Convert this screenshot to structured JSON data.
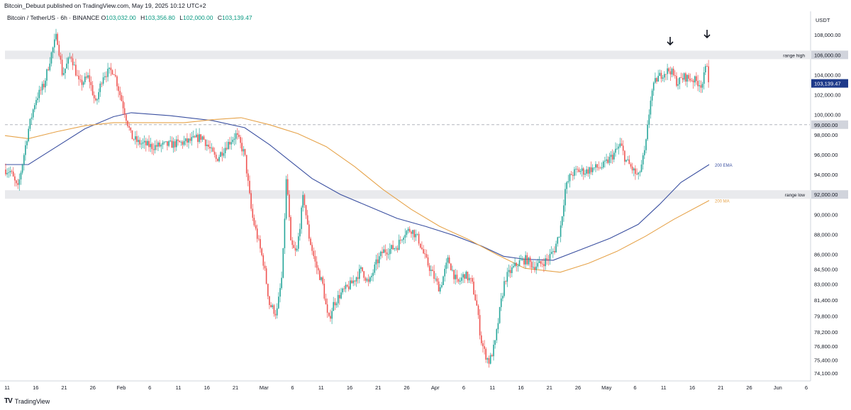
{
  "header": {
    "publish_text": "Bitcoin_Debuut published on TradingView.com, May 19, 2025 10:12 UTC+2",
    "symbol": "Bitcoin / TetherUS · 6h · BINANCE",
    "open_label": "O",
    "open": "103,032.00",
    "high_label": "H",
    "high": "103,356.80",
    "low_label": "L",
    "low": "102,000.00",
    "close_label": "C",
    "close": "103,139.47"
  },
  "footer": {
    "brand": "TradingView"
  },
  "colors": {
    "up": "#26a69a",
    "down": "#ef5350",
    "ema": "#3a4fa0",
    "ma": "#e6a34a",
    "zone": "#e9eaed",
    "last_price_bg": "#1e3a8a",
    "grid": "#f0f3fa"
  },
  "chart_data": {
    "type": "candlestick",
    "currency_label": "USDT",
    "y_ticks": [
      "108,000.00",
      "104,000.00",
      "102,000.00",
      "100,000.00",
      "98,000.00",
      "96,000.00",
      "94,000.00",
      "90,000.00",
      "88,000.00",
      "86,000.00",
      "84,500.00",
      "83,000.00",
      "81,400.00",
      "79,800.00",
      "78,200.00",
      "76,800.00",
      "75,400.00",
      "74,100.00"
    ],
    "x_ticks": [
      "11",
      "16",
      "21",
      "26",
      "Feb",
      "6",
      "11",
      "16",
      "21",
      "Mar",
      "6",
      "11",
      "16",
      "21",
      "26",
      "Apr",
      "6",
      "11",
      "16",
      "21",
      "26",
      "May",
      "6",
      "11",
      "16",
      "21",
      "26",
      "Jun",
      "6"
    ],
    "y_labels": [
      {
        "text": "106,000.00",
        "value": 106000,
        "label": "range high"
      },
      {
        "text": "99,000.00",
        "value": 99000
      },
      {
        "text": "92,000.00",
        "value": 92000,
        "label": "range low"
      }
    ],
    "last_price": {
      "text": "103,139.47",
      "value": 103139.47
    },
    "zones": [
      {
        "name": "range high",
        "value": 106000
      },
      {
        "name": "range low",
        "value": 92000
      }
    ],
    "dashed_level": 99000,
    "line_labels": [
      {
        "text": "200 EMA"
      },
      {
        "text": "200 MA"
      }
    ],
    "series": [
      {
        "name": "200 EMA",
        "points": [
          [
            7,
            95000
          ],
          [
            40,
            95000
          ],
          [
            80,
            96800
          ],
          [
            120,
            98600
          ],
          [
            160,
            99800
          ],
          [
            185,
            100200
          ],
          [
            240,
            99900
          ],
          [
            300,
            99400
          ],
          [
            345,
            98700
          ],
          [
            380,
            97000
          ],
          [
            410,
            95300
          ],
          [
            440,
            93600
          ],
          [
            480,
            92000
          ],
          [
            520,
            90800
          ],
          [
            560,
            89600
          ],
          [
            600,
            88800
          ],
          [
            640,
            87900
          ],
          [
            680,
            86800
          ],
          [
            710,
            85800
          ],
          [
            740,
            85500
          ],
          [
            780,
            85400
          ],
          [
            820,
            86500
          ],
          [
            860,
            87600
          ],
          [
            900,
            89000
          ],
          [
            930,
            91000
          ],
          [
            960,
            93200
          ],
          [
            1000,
            95000
          ]
        ]
      },
      {
        "name": "200 MA",
        "points": [
          [
            7,
            97900
          ],
          [
            40,
            97600
          ],
          [
            80,
            98300
          ],
          [
            120,
            98900
          ],
          [
            160,
            99200
          ],
          [
            200,
            99200
          ],
          [
            260,
            99200
          ],
          [
            300,
            99500
          ],
          [
            340,
            99700
          ],
          [
            380,
            99000
          ],
          [
            420,
            98100
          ],
          [
            460,
            96800
          ],
          [
            500,
            94800
          ],
          [
            540,
            92500
          ],
          [
            580,
            90500
          ],
          [
            620,
            88800
          ],
          [
            660,
            87500
          ],
          [
            700,
            86000
          ],
          [
            740,
            84600
          ],
          [
            790,
            84200
          ],
          [
            830,
            85100
          ],
          [
            870,
            86300
          ],
          [
            910,
            87800
          ],
          [
            950,
            89500
          ],
          [
            1000,
            91400
          ]
        ]
      }
    ],
    "guide_path": [
      [
        7,
        94500
      ],
      [
        15,
        94300
      ],
      [
        25,
        92500
      ],
      [
        40,
        98500
      ],
      [
        50,
        101500
      ],
      [
        62,
        103000
      ],
      [
        72,
        106000
      ],
      [
        80,
        108000
      ],
      [
        88,
        104000
      ],
      [
        100,
        106000
      ],
      [
        112,
        103000
      ],
      [
        125,
        103800
      ],
      [
        135,
        101000
      ],
      [
        145,
        104000
      ],
      [
        160,
        104500
      ],
      [
        175,
        100500
      ],
      [
        185,
        97800
      ],
      [
        195,
        97200
      ],
      [
        215,
        96800
      ],
      [
        240,
        97000
      ],
      [
        265,
        97300
      ],
      [
        285,
        97800
      ],
      [
        305,
        95500
      ],
      [
        320,
        97000
      ],
      [
        333,
        98000
      ],
      [
        345,
        96000
      ],
      [
        355,
        90000
      ],
      [
        362,
        88000
      ],
      [
        372,
        85000
      ],
      [
        380,
        81000
      ],
      [
        390,
        80000
      ],
      [
        398,
        84000
      ],
      [
        404,
        94000
      ],
      [
        410,
        87000
      ],
      [
        418,
        86000
      ],
      [
        428,
        92000
      ],
      [
        435,
        88000
      ],
      [
        445,
        85000
      ],
      [
        455,
        83000
      ],
      [
        463,
        79200
      ],
      [
        470,
        81000
      ],
      [
        480,
        82000
      ],
      [
        495,
        83000
      ],
      [
        510,
        84500
      ],
      [
        520,
        83000
      ],
      [
        530,
        85000
      ],
      [
        540,
        86300
      ],
      [
        550,
        86500
      ],
      [
        560,
        86800
      ],
      [
        570,
        88200
      ],
      [
        580,
        88500
      ],
      [
        590,
        87500
      ],
      [
        600,
        85500
      ],
      [
        610,
        84000
      ],
      [
        620,
        82500
      ],
      [
        632,
        85500
      ],
      [
        645,
        83000
      ],
      [
        655,
        84000
      ],
      [
        665,
        83200
      ],
      [
        672,
        81000
      ],
      [
        678,
        77500
      ],
      [
        684,
        76000
      ],
      [
        690,
        75200
      ],
      [
        698,
        77000
      ],
      [
        705,
        80500
      ],
      [
        712,
        83500
      ],
      [
        722,
        84500
      ],
      [
        732,
        85200
      ],
      [
        742,
        85500
      ],
      [
        752,
        84800
      ],
      [
        762,
        85000
      ],
      [
        772,
        85500
      ],
      [
        782,
        86500
      ],
      [
        790,
        88500
      ],
      [
        797,
        92500
      ],
      [
        805,
        94000
      ],
      [
        815,
        94400
      ],
      [
        825,
        94300
      ],
      [
        835,
        94600
      ],
      [
        850,
        94800
      ],
      [
        865,
        96000
      ],
      [
        875,
        97000
      ],
      [
        882,
        95500
      ],
      [
        892,
        94500
      ],
      [
        900,
        93700
      ],
      [
        910,
        96500
      ],
      [
        918,
        102000
      ],
      [
        925,
        103500
      ],
      [
        935,
        104200
      ],
      [
        945,
        104500
      ],
      [
        955,
        103200
      ],
      [
        965,
        103800
      ],
      [
        978,
        103500
      ],
      [
        990,
        103000
      ],
      [
        997,
        105200
      ],
      [
        1000,
        103100
      ]
    ]
  }
}
